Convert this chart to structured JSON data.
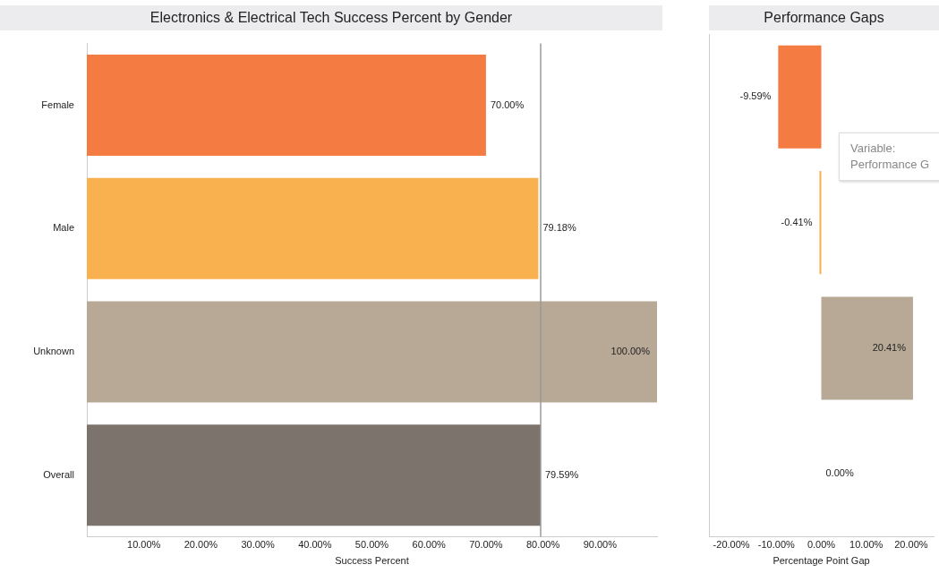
{
  "chart_data": [
    {
      "type": "bar",
      "orientation": "horizontal",
      "title": "Electronics & Electrical Tech Success Percent by Gender",
      "xlabel": "Success Percent",
      "categories": [
        "Female",
        "Male",
        "Unknown",
        "Overall"
      ],
      "values": [
        70,
        79.18,
        100,
        79.59
      ],
      "colors": [
        "#f47b42",
        "#f9b04f",
        "#b8a997",
        "#7b736c"
      ],
      "value_labels": [
        "70.00%",
        "79.18%",
        "100.00%",
        "79.59%"
      ],
      "xlim": [
        0,
        100
      ],
      "xticks": [
        {
          "value": 10,
          "label": "10.00%"
        },
        {
          "value": 20,
          "label": "20.00%"
        },
        {
          "value": 30,
          "label": "30.00%"
        },
        {
          "value": 40,
          "label": "40.00%"
        },
        {
          "value": 50,
          "label": "50.00%"
        },
        {
          "value": 60,
          "label": "60.00%"
        },
        {
          "value": 70,
          "label": "70.00%"
        },
        {
          "value": 80,
          "label": "80.00%"
        },
        {
          "value": 90,
          "label": "90.00%"
        }
      ],
      "ref_lines": [
        {
          "axis": "x",
          "value": 79.59,
          "color": "#9a9a9a"
        }
      ],
      "grid": false,
      "legend": false
    },
    {
      "type": "bar",
      "orientation": "horizontal",
      "title": "Performance Gaps",
      "xlabel": "Percentage Point Gap",
      "categories": [
        null,
        null,
        null,
        null
      ],
      "values": [
        -9.59,
        -0.41,
        20.41,
        0
      ],
      "colors": [
        "#f47b42",
        "#f9b04f",
        "#b8a997",
        "#7b736c"
      ],
      "value_labels": [
        "-9.59%",
        "-0.41%",
        "20.41%",
        "0.00%"
      ],
      "xlim": [
        -25,
        25
      ],
      "xticks": [
        {
          "value": -20,
          "label": "-20.00%"
        },
        {
          "value": -10,
          "label": "-10.00%"
        },
        {
          "value": 0,
          "label": "0.00%"
        },
        {
          "value": 10,
          "label": "10.00%"
        },
        {
          "value": 20,
          "label": "20.00%"
        }
      ],
      "tick_labels": "x",
      "grid": false,
      "legend": false,
      "annotations": [
        "Variable: Performance G"
      ]
    }
  ]
}
